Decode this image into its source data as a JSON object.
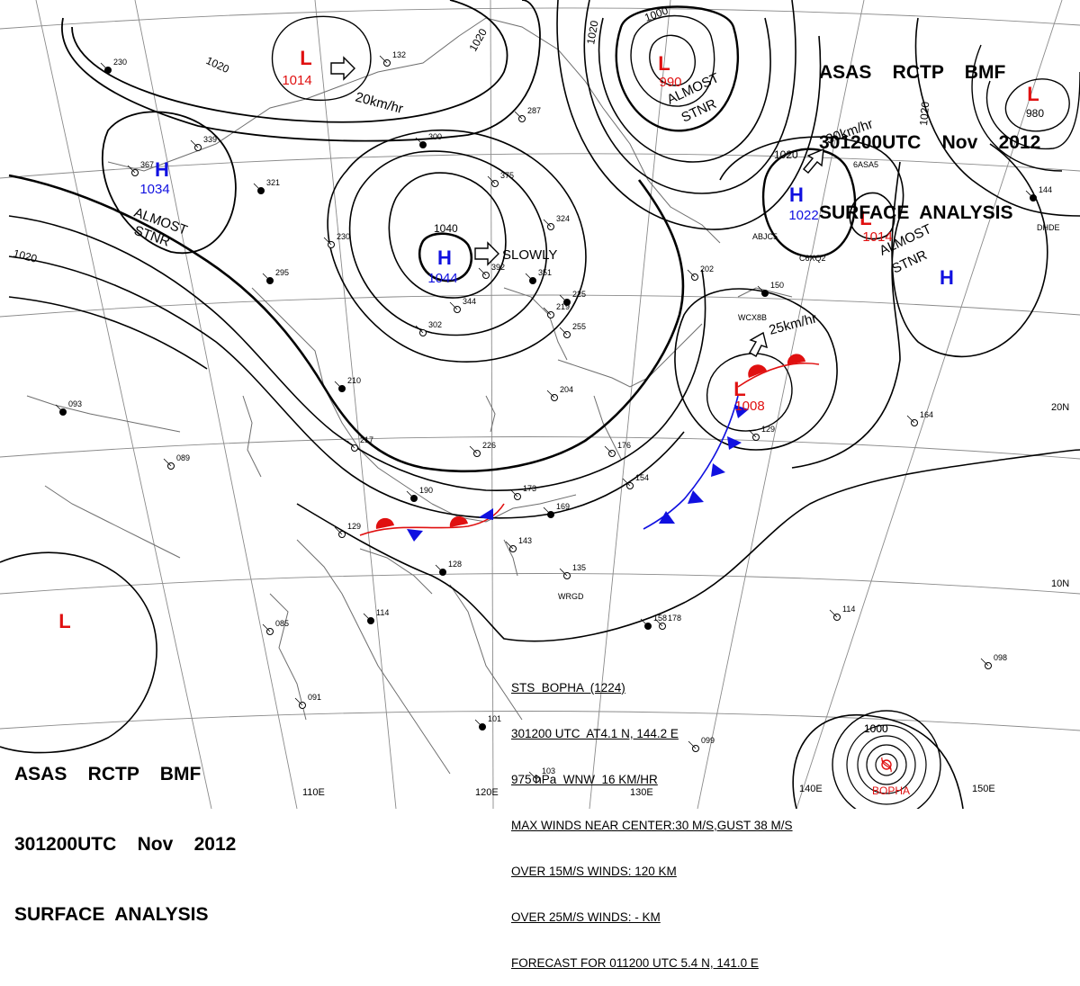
{
  "header_top": {
    "line1": "ASAS    RCTP    BMF",
    "line2": "301200UTC    Nov    2012",
    "line3": "SURFACE  ANALYSIS"
  },
  "header_bottom": {
    "line1": "ASAS    RCTP    BMF",
    "line2": "301200UTC    Nov    2012",
    "line3": "SURFACE  ANALYSIS"
  },
  "colors": {
    "high": "#1010e0",
    "low": "#e01010",
    "cold_front": "#1010e0",
    "warm_front": "#e01010",
    "isobar": "#000000",
    "grid": "#888888"
  },
  "pressure_centers": [
    {
      "type": "L",
      "value": "1014",
      "id": "low-nw"
    },
    {
      "type": "L",
      "value": "990",
      "id": "low-north"
    },
    {
      "type": "L",
      "value": "980",
      "id": "low-ne"
    },
    {
      "type": "H",
      "value": "1034",
      "id": "high-west"
    },
    {
      "type": "H",
      "value": "1044",
      "id": "high-central"
    },
    {
      "type": "H",
      "value": "1022",
      "id": "high-east"
    },
    {
      "type": "L",
      "value": "1014",
      "id": "low-east"
    },
    {
      "type": "H",
      "value": "",
      "id": "high-far-east"
    },
    {
      "type": "L",
      "value": "1008",
      "id": "low-front"
    },
    {
      "type": "L",
      "value": "",
      "id": "low-sw"
    }
  ],
  "isobar_labels": [
    "1020",
    "1020",
    "1020",
    "1020",
    "1000",
    "1040",
    "1020",
    "1020",
    "1000"
  ],
  "annotations": {
    "motion_nw": "20km/hr",
    "motion_ne": "30km/hr",
    "motion_front": "25km/hr",
    "motion_central": "SLOWLY",
    "stnr_west_1": "ALMOST",
    "stnr_west_2": "STNR",
    "stnr_north_1": "ALMOST",
    "stnr_north_2": "STNR",
    "stnr_east_1": "ALMOST",
    "stnr_east_2": "STNR"
  },
  "axis_labels": {
    "lon": [
      "110E",
      "120E",
      "130E",
      "140E",
      "150E"
    ],
    "lat": [
      "20N",
      "10N"
    ]
  },
  "typhoon": {
    "name": "BOPHA",
    "isobar": "1000",
    "info_lines": [
      "STS  BOPHA  (1224)",
      "301200 UTC  AT4.1 N, 144.2 E",
      "975 hPa  WNW  16 KM/HR",
      "MAX WINDS NEAR CENTER:30 M/S,GUST 38 M/S",
      "OVER 15M/S WINDS: 120 KM",
      "OVER 25M/S WINDS: - KM",
      "FORECAST FOR 011200 UTC 5.4 N, 141.0 E"
    ]
  },
  "ship_ids": [
    "ABJC5",
    "C6XQ2",
    "WCX8B",
    "WRGD",
    "6ASA5",
    "DHDE"
  ],
  "station_values": [
    "230",
    "132",
    "287",
    "300",
    "339",
    "367",
    "321",
    "375",
    "324",
    "295",
    "230",
    "392",
    "351",
    "302",
    "344",
    "225",
    "219",
    "255",
    "210",
    "217",
    "226",
    "190",
    "176",
    "173",
    "169",
    "154",
    "143",
    "128",
    "129",
    "135",
    "114",
    "085",
    "091",
    "101",
    "103",
    "099",
    "093",
    "089",
    "164",
    "144",
    "098",
    "178",
    "150",
    "202",
    "204",
    "158",
    "129",
    "114"
  ]
}
